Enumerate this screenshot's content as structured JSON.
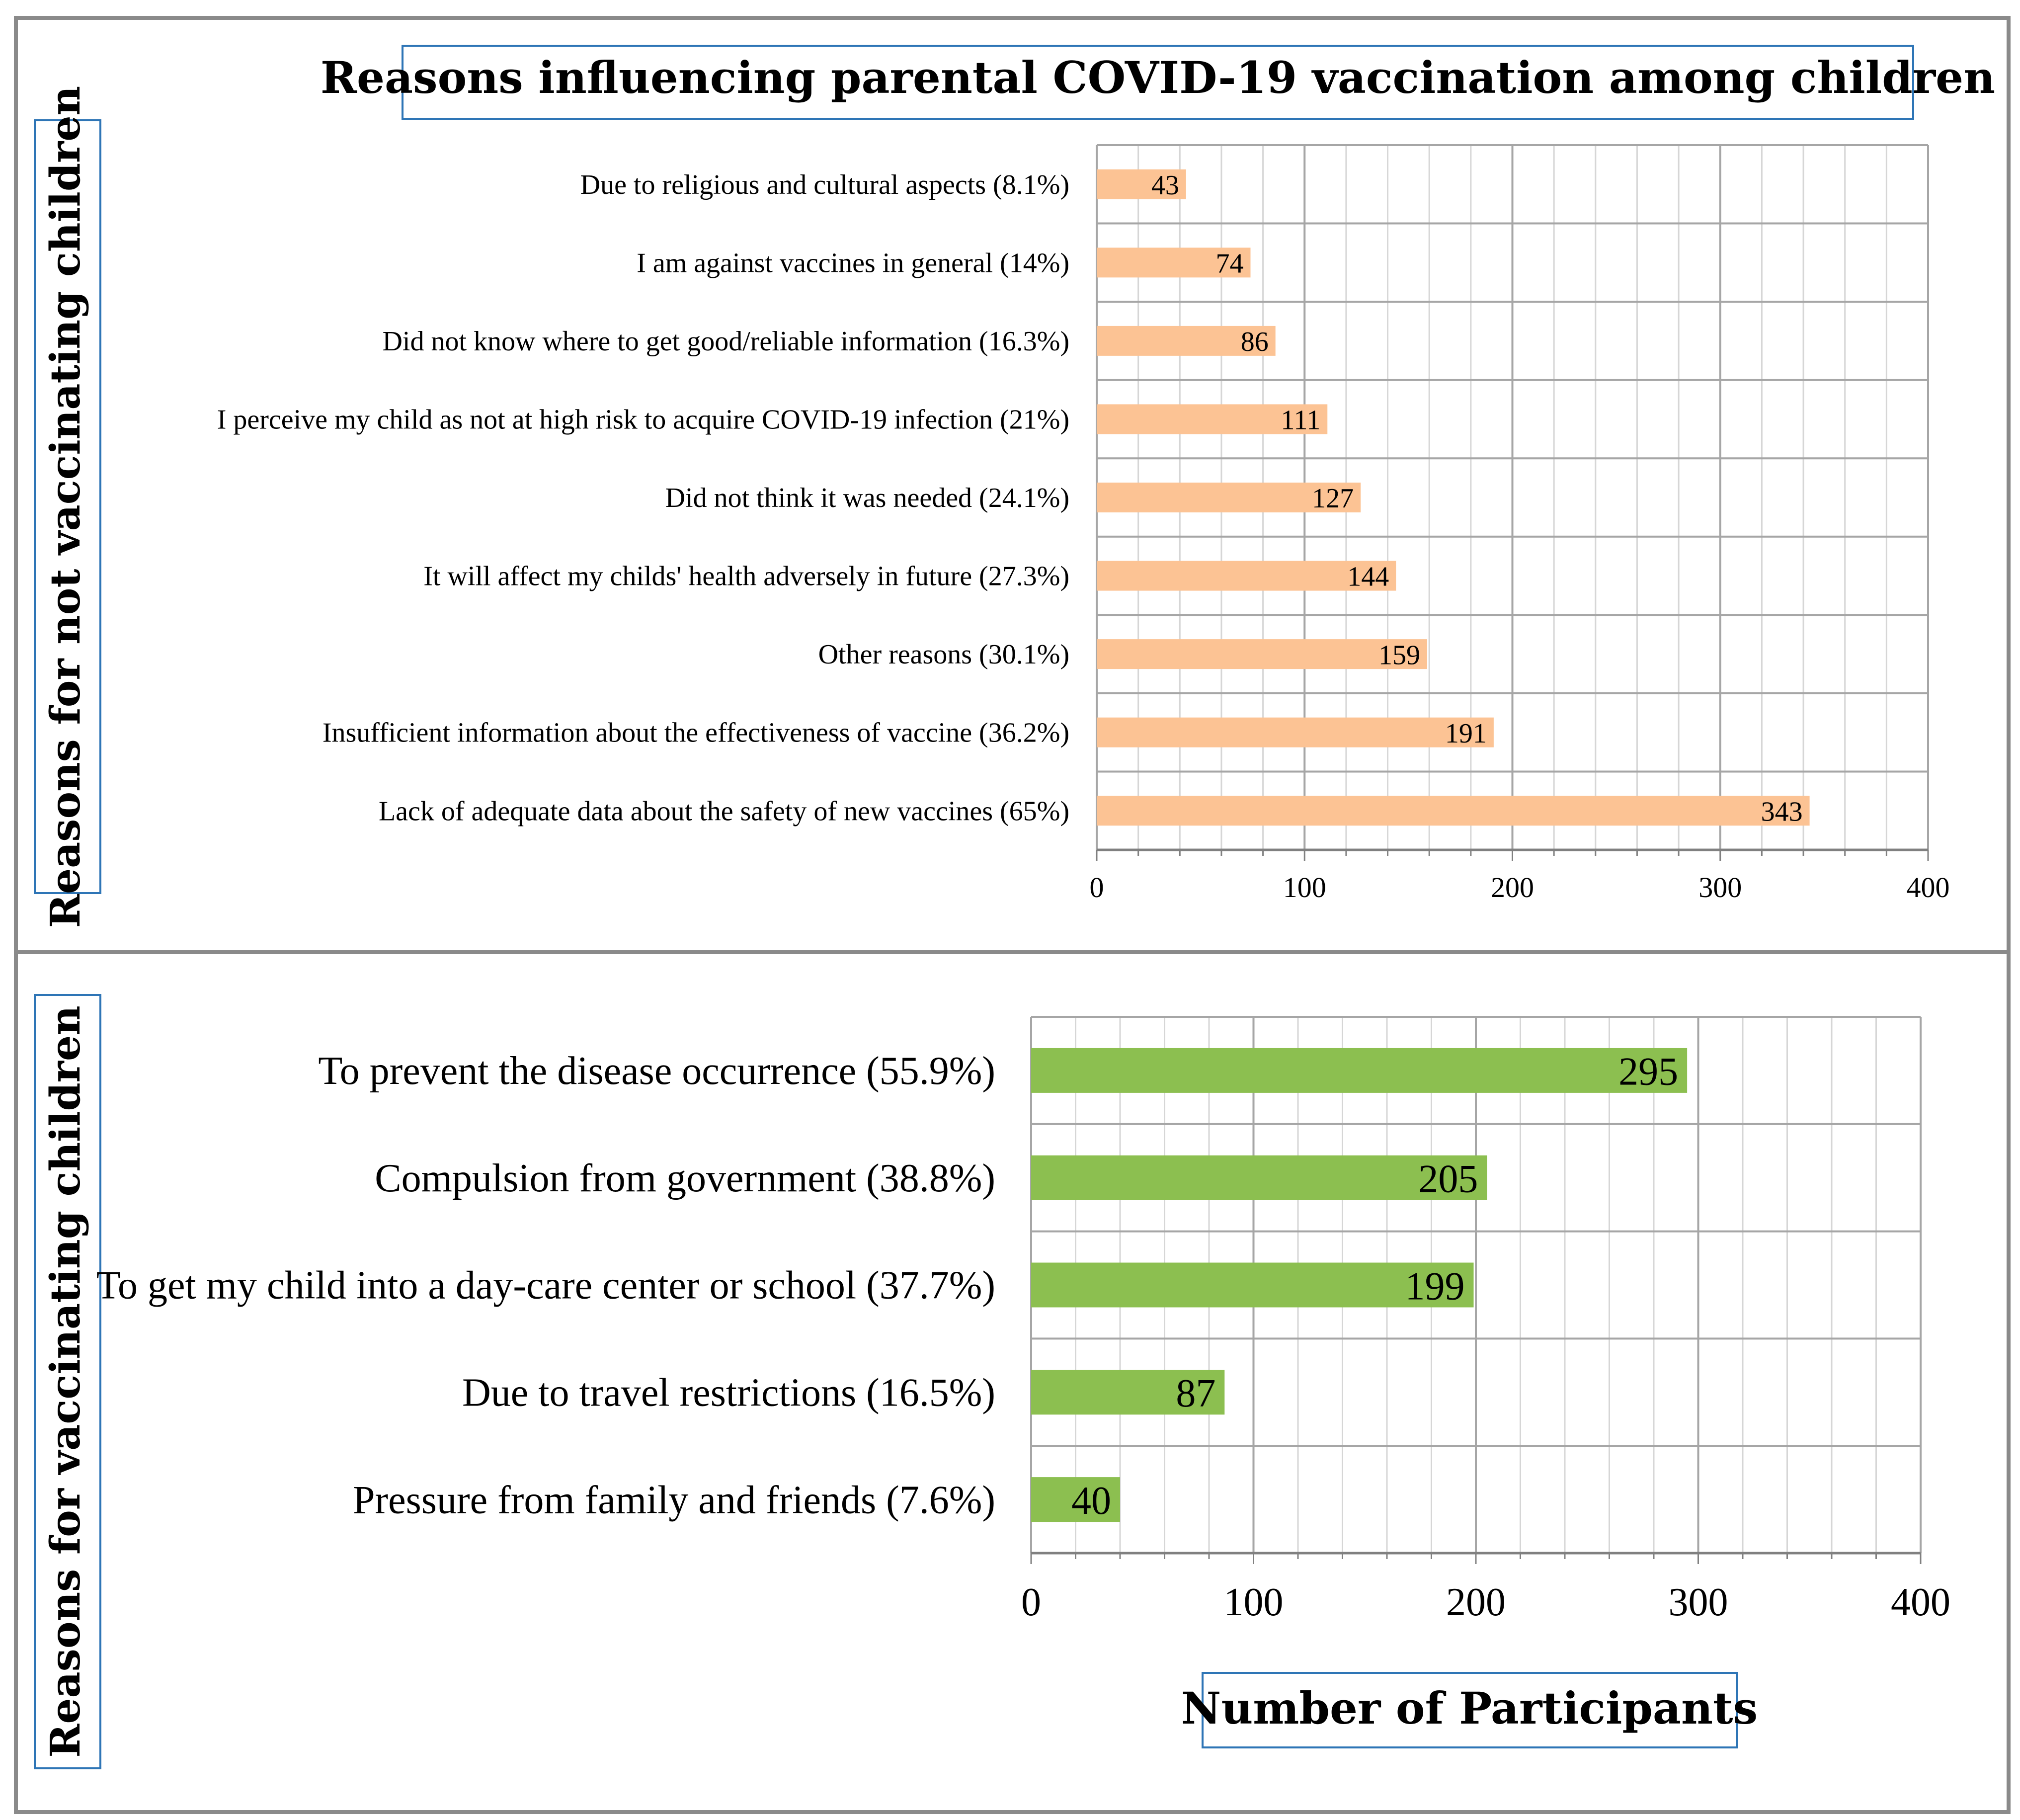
{
  "figure_title": "Reasons influencing parental COVID-19 vaccination among children",
  "chart_data": [
    {
      "type": "bar",
      "orientation": "horizontal",
      "title": "Reasons influencing parental COVID-19 vaccination among children",
      "ylabel": "Reasons for not vaccinating children",
      "xlabel": "",
      "xlim": [
        0,
        400
      ],
      "x_major_ticks": [
        0,
        100,
        200,
        300,
        400
      ],
      "x_minor_step": 20,
      "grid": true,
      "bar_color": "#FCC394",
      "categories": [
        "Due to religious and cultural aspects (8.1%)",
        "I am against vaccines in general (14%)",
        "Did not know where to get good/reliable information (16.3%)",
        "I perceive my child as not at high risk to acquire COVID-19 infection (21%)",
        "Did not think it was needed (24.1%)",
        "It will affect my childs' health adversely in future (27.3%)",
        "Other reasons (30.1%)",
        "Insufficient information about the effectiveness of vaccine (36.2%)",
        "Lack of adequate data about the safety of new vaccines (65%)"
      ],
      "values": [
        43,
        74,
        86,
        111,
        127,
        144,
        159,
        191,
        343
      ],
      "data_labels": [
        "43",
        "74",
        "86",
        "111",
        "127",
        "144",
        "159",
        "191",
        "343"
      ],
      "tick_labels": [
        "0",
        "100",
        "200",
        "300",
        "400"
      ]
    },
    {
      "type": "bar",
      "orientation": "horizontal",
      "title": "",
      "ylabel": "Reasons for vaccinating children",
      "xlabel": "Number of Participants",
      "xlim": [
        0,
        400
      ],
      "x_major_ticks": [
        0,
        100,
        200,
        300,
        400
      ],
      "x_minor_step": 20,
      "grid": true,
      "bar_color": "#8CBF50",
      "categories": [
        "To prevent the disease occurrence (55.9%)",
        "Compulsion from government (38.8%)",
        "To get my child into a day-care center or school (37.7%)",
        "Due to travel restrictions (16.5%)",
        "Pressure from family and friends (7.6%)"
      ],
      "values": [
        295,
        205,
        199,
        87,
        40
      ],
      "data_labels": [
        "295",
        "205",
        "199",
        "87",
        "40"
      ],
      "tick_labels": [
        "0",
        "100",
        "200",
        "300",
        "400"
      ]
    }
  ],
  "colors": {
    "frame": "#8A8A8A",
    "title_box_border": "#2E75B6",
    "grid_major": "#A6A6A6",
    "grid_minor": "#D6D6D6",
    "bar_top": "#FCC394",
    "bar_bottom": "#8CBF50"
  }
}
